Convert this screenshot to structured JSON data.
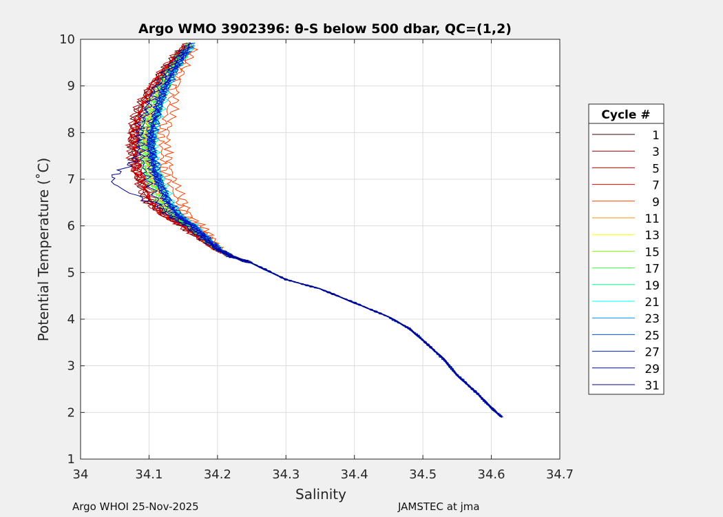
{
  "chart_data": {
    "type": "line",
    "title": "Argo WMO 3902396: θ-S below 500 dbar,  QC=(1,2)",
    "xlabel": "Salinity",
    "ylabel": "Potential Temperature (˚C)",
    "xlim": [
      34,
      34.7
    ],
    "ylim": [
      1,
      10
    ],
    "xticks": [
      "34",
      "34.1",
      "34.2",
      "34.3",
      "34.4",
      "34.5",
      "34.6",
      "34.7"
    ],
    "yticks": [
      "1",
      "2",
      "3",
      "4",
      "5",
      "6",
      "7",
      "8",
      "9",
      "10"
    ],
    "grid": true,
    "legend": {
      "title": "Cycle #",
      "placement": "outside-right"
    },
    "base_profile": [
      [
        34.165,
        10.0
      ],
      [
        34.15,
        9.7
      ],
      [
        34.13,
        9.3
      ],
      [
        34.115,
        8.9
      ],
      [
        34.105,
        8.5
      ],
      [
        34.097,
        8.1
      ],
      [
        34.095,
        7.8
      ],
      [
        34.097,
        7.5
      ],
      [
        34.1,
        7.2
      ],
      [
        34.108,
        6.9
      ],
      [
        34.12,
        6.5
      ],
      [
        34.138,
        6.2
      ],
      [
        34.16,
        6.0
      ],
      [
        34.18,
        5.75
      ],
      [
        34.2,
        5.5
      ],
      [
        34.22,
        5.35
      ],
      [
        34.25,
        5.2
      ],
      [
        34.3,
        4.85
      ],
      [
        34.35,
        4.65
      ],
      [
        34.4,
        4.35
      ],
      [
        34.45,
        4.05
      ],
      [
        34.48,
        3.8
      ],
      [
        34.5,
        3.55
      ],
      [
        34.53,
        3.15
      ],
      [
        34.55,
        2.8
      ],
      [
        34.58,
        2.4
      ],
      [
        34.6,
        2.1
      ],
      [
        34.615,
        1.9
      ]
    ],
    "series": [
      {
        "name": "1",
        "color": "#400000",
        "anomaly": -0.022
      },
      {
        "name": "3",
        "color": "#800000",
        "anomaly": -0.02
      },
      {
        "name": "5",
        "color": "#c00000",
        "anomaly": -0.024
      },
      {
        "name": "7",
        "color": "#e00000",
        "anomaly": -0.017
      },
      {
        "name": "9",
        "color": "#ff4000",
        "anomaly": 0.032
      },
      {
        "name": "11",
        "color": "#ff9000",
        "anomaly": 0.0
      },
      {
        "name": "13",
        "color": "#ffff00",
        "anomaly": 0.004
      },
      {
        "name": "15",
        "color": "#80ff00",
        "anomaly": 0.012
      },
      {
        "name": "17",
        "color": "#40ff40",
        "anomaly": -0.006
      },
      {
        "name": "19",
        "color": "#00ff80",
        "anomaly": 0.008
      },
      {
        "name": "21",
        "color": "#00ffff",
        "anomaly": 0.014
      },
      {
        "name": "23",
        "color": "#0090ff",
        "anomaly": 0.012
      },
      {
        "name": "25",
        "color": "#0050e0",
        "anomaly": 0.009
      },
      {
        "name": "27",
        "color": "#0020c0",
        "anomaly": 0.011
      },
      {
        "name": "29",
        "color": "#0000c0",
        "anomaly": 0.006
      },
      {
        "name": "31",
        "color": "#000090",
        "anomaly": -0.01
      }
    ]
  },
  "footer": {
    "left": "Argo WHOI 25-Nov-2025",
    "right": "JAMSTEC at jma"
  }
}
